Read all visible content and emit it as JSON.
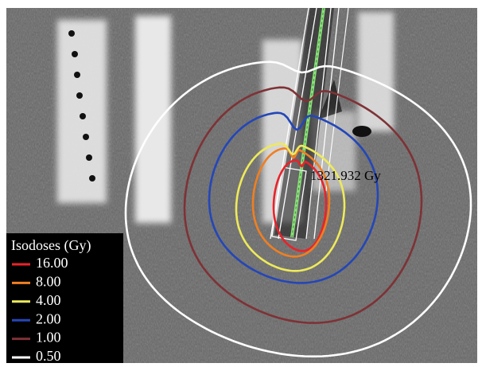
{
  "legend": {
    "title": "Isodoses (Gy)",
    "items": [
      {
        "label": "16.00",
        "color": "#e8232a"
      },
      {
        "label": "8.00",
        "color": "#f07f22"
      },
      {
        "label": "4.00",
        "color": "#eeea5a"
      },
      {
        "label": "2.00",
        "color": "#2446b8"
      },
      {
        "label": "1.00",
        "color": "#7e3236"
      },
      {
        "label": "0.50",
        "color": "#ffffff"
      }
    ]
  },
  "annotation": "1321.932 Gy"
}
